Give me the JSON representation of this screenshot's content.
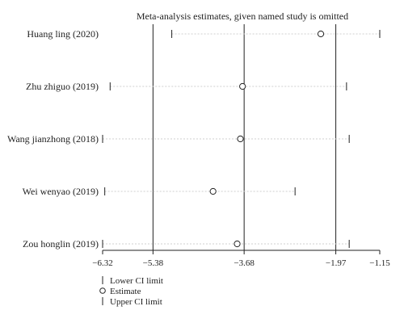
{
  "chart_data": {
    "type": "scatter",
    "title": "Meta-analysis estimates, given named study is omitted",
    "xlabel": "",
    "ylabel": "",
    "xlim": [
      -6.32,
      -1.15
    ],
    "reference_lines": [
      -5.38,
      -3.68,
      -1.97
    ],
    "x_ticks": [
      {
        "value": -6.32,
        "label": "−6.32"
      },
      {
        "value": -5.38,
        "label": "−5.38"
      },
      {
        "value": -3.68,
        "label": "−3.68"
      },
      {
        "value": -1.97,
        "label": "−1.97"
      },
      {
        "value": -1.15,
        "label": "−1.15"
      }
    ],
    "studies": [
      {
        "name": "Huang ling (2020)",
        "lower": -5.03,
        "estimate": -2.25,
        "upper": -1.15
      },
      {
        "name": "Zhu zhiguo (2019)",
        "lower": -6.18,
        "estimate": -3.71,
        "upper": -1.77
      },
      {
        "name": "Wang jianzhong (2018)",
        "lower": -6.32,
        "estimate": -3.75,
        "upper": -1.72
      },
      {
        "name": "Wei wenyao (2019)",
        "lower": -6.28,
        "estimate": -4.26,
        "upper": -2.73
      },
      {
        "name": "Zou honglin (2019)",
        "lower": -6.32,
        "estimate": -3.81,
        "upper": -1.72
      }
    ],
    "legend": {
      "position": "bottom-left",
      "items": [
        {
          "symbol": "tick",
          "label": "Lower CI limit"
        },
        {
          "symbol": "circle",
          "label": "Estimate"
        },
        {
          "symbol": "tick",
          "label": "Upper CI limit"
        }
      ]
    },
    "grid": false,
    "colors": {
      "axis": "#222222",
      "reference_line": "#222222",
      "ci_line": "#cfcfcf",
      "marker": "#222222"
    }
  }
}
